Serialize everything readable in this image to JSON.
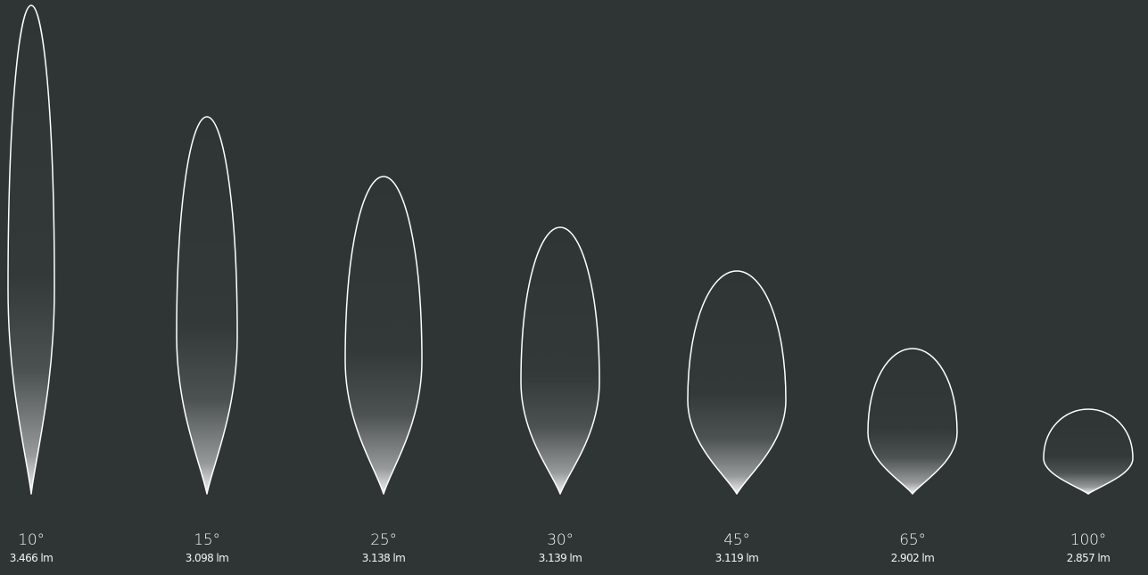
{
  "beams": [
    {
      "angle": "10°",
      "lumen": "3.466 lm"
    },
    {
      "angle": "15°",
      "lumen": "3.098 lm"
    },
    {
      "angle": "25°",
      "lumen": "3.138 lm"
    },
    {
      "angle": "30°",
      "lumen": "3.139 lm"
    },
    {
      "angle": "45°",
      "lumen": "3.119 lm"
    },
    {
      "angle": "65°",
      "lumen": "2.902 lm"
    },
    {
      "angle": "100°",
      "lumen": "2.857 lm"
    }
  ],
  "colors": {
    "background": "#2f3535",
    "outline": "#ffffff",
    "label_text": "#f1f3f2",
    "glow": "#ffffff"
  }
}
